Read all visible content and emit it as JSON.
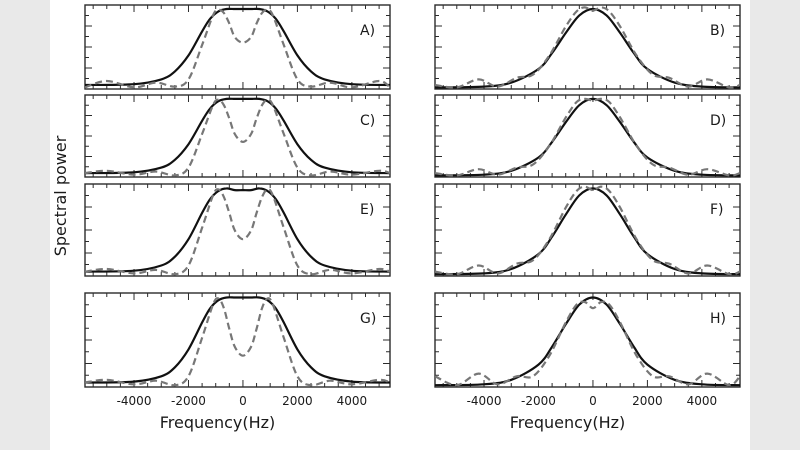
{
  "chart_data": {
    "type": "line",
    "ylabel": "Spectral power",
    "columns": [
      {
        "xlabel": "Frequency(Hz)",
        "tick_labels": [
          "-4000",
          "-2000",
          "0",
          "2000",
          "4000"
        ],
        "tick_values": [
          -4000,
          -2000,
          0,
          2000,
          4000
        ]
      },
      {
        "xlabel": "Frequency(Hz)",
        "tick_labels": [
          "-4000",
          "-2000",
          "0",
          "2000",
          "4000"
        ],
        "tick_values": [
          -4000,
          -2000,
          0,
          2000,
          4000
        ]
      }
    ],
    "xlim": [
      -5800,
      5400
    ],
    "ylim": [
      0,
      1.05
    ],
    "panels": [
      {
        "label": "A)",
        "column": 0,
        "row": 0,
        "series": [
          {
            "style": "solid",
            "x": [
              -5800,
              -4000,
              -3000,
              -2500,
              -2000,
              -1500,
              -1200,
              -900,
              -600,
              -300,
              0,
              300,
              600,
              900,
              1200,
              1500,
              2000,
              2500,
              3000,
              4000,
              5400
            ],
            "y": [
              0.05,
              0.06,
              0.12,
              0.22,
              0.42,
              0.72,
              0.88,
              0.97,
              1.0,
              1.0,
              1.0,
              1.0,
              1.0,
              0.97,
              0.88,
              0.72,
              0.42,
              0.22,
              0.12,
              0.06,
              0.05
            ]
          },
          {
            "style": "dashed",
            "x": [
              -5800,
              -5000,
              -4000,
              -3200,
              -2500,
              -2000,
              -1500,
              -1100,
              -900,
              -700,
              -500,
              -300,
              0,
              300,
              500,
              700,
              900,
              1100,
              1500,
              2000,
              2500,
              3200,
              4000,
              5000,
              5400
            ],
            "y": [
              0.02,
              0.1,
              0.02,
              0.08,
              0.03,
              0.12,
              0.55,
              0.92,
              0.99,
              0.95,
              0.82,
              0.65,
              0.58,
              0.65,
              0.82,
              0.95,
              0.99,
              0.92,
              0.55,
              0.12,
              0.03,
              0.08,
              0.02,
              0.1,
              0.02
            ]
          }
        ]
      },
      {
        "label": "B)",
        "column": 1,
        "row": 0,
        "series": [
          {
            "style": "solid",
            "x": [
              -5800,
              -4000,
              -3000,
              -2000,
              -1500,
              -1000,
              -500,
              0,
              500,
              1000,
              1500,
              2000,
              3000,
              4000,
              5400
            ],
            "y": [
              0.02,
              0.03,
              0.08,
              0.25,
              0.45,
              0.7,
              0.92,
              1.0,
              0.92,
              0.7,
              0.45,
              0.25,
              0.08,
              0.03,
              0.02
            ]
          },
          {
            "style": "dashed",
            "x": [
              -5800,
              -5000,
              -4200,
              -3500,
              -2800,
              -2200,
              -1600,
              -1000,
              -600,
              -300,
              0,
              300,
              600,
              1000,
              1600,
              2200,
              2800,
              3500,
              4200,
              5000,
              5400
            ],
            "y": [
              0.05,
              0.02,
              0.12,
              0.03,
              0.14,
              0.18,
              0.42,
              0.78,
              0.97,
              1.02,
              0.98,
              1.02,
              0.97,
              0.78,
              0.42,
              0.18,
              0.14,
              0.03,
              0.12,
              0.02,
              0.05
            ]
          }
        ]
      },
      {
        "label": "C)",
        "column": 0,
        "row": 1,
        "series": [
          {
            "style": "solid",
            "x": [
              -5800,
              -4000,
              -3000,
              -2500,
              -2000,
              -1500,
              -1200,
              -900,
              -600,
              -300,
              0,
              300,
              600,
              900,
              1200,
              1500,
              2000,
              2500,
              3000,
              4000,
              5400
            ],
            "y": [
              0.05,
              0.06,
              0.12,
              0.22,
              0.42,
              0.72,
              0.88,
              0.97,
              1.0,
              1.0,
              1.0,
              1.0,
              1.0,
              0.97,
              0.88,
              0.72,
              0.42,
              0.22,
              0.12,
              0.06,
              0.05
            ]
          },
          {
            "style": "dashed",
            "x": [
              -5800,
              -5000,
              -4000,
              -3200,
              -2500,
              -2000,
              -1500,
              -1100,
              -900,
              -700,
              -500,
              -300,
              0,
              300,
              500,
              700,
              900,
              1100,
              1500,
              2000,
              2500,
              3200,
              4000,
              5000,
              5400
            ],
            "y": [
              0.05,
              0.08,
              0.03,
              0.07,
              0.02,
              0.12,
              0.55,
              0.92,
              0.99,
              0.92,
              0.75,
              0.55,
              0.45,
              0.55,
              0.75,
              0.92,
              0.99,
              0.92,
              0.55,
              0.12,
              0.02,
              0.07,
              0.03,
              0.08,
              0.05
            ]
          }
        ]
      },
      {
        "label": "D)",
        "column": 1,
        "row": 1,
        "series": [
          {
            "style": "solid",
            "x": [
              -5800,
              -4000,
              -3000,
              -2000,
              -1500,
              -1000,
              -500,
              0,
              500,
              1000,
              1500,
              2000,
              3000,
              4000,
              5400
            ],
            "y": [
              0.02,
              0.03,
              0.08,
              0.25,
              0.45,
              0.7,
              0.92,
              1.0,
              0.92,
              0.7,
              0.45,
              0.25,
              0.08,
              0.03,
              0.02
            ]
          },
          {
            "style": "dashed",
            "x": [
              -5800,
              -5000,
              -4200,
              -3500,
              -2800,
              -2200,
              -1600,
              -1000,
              -600,
              -300,
              0,
              300,
              600,
              1000,
              1600,
              2200,
              2800,
              3500,
              4200,
              5000,
              5400
            ],
            "y": [
              0.05,
              0.02,
              0.1,
              0.03,
              0.12,
              0.16,
              0.4,
              0.76,
              0.96,
              1.0,
              0.98,
              1.0,
              0.96,
              0.76,
              0.4,
              0.16,
              0.12,
              0.03,
              0.1,
              0.02,
              0.05
            ]
          }
        ]
      },
      {
        "label": "E)",
        "column": 0,
        "row": 2,
        "series": [
          {
            "style": "solid",
            "x": [
              -5800,
              -4000,
              -3000,
              -2500,
              -2000,
              -1500,
              -1200,
              -900,
              -600,
              -300,
              0,
              300,
              600,
              900,
              1200,
              1500,
              2000,
              2500,
              3000,
              4000,
              5400
            ],
            "y": [
              0.05,
              0.06,
              0.12,
              0.22,
              0.42,
              0.72,
              0.88,
              0.97,
              1.0,
              0.98,
              0.98,
              0.98,
              1.0,
              0.97,
              0.88,
              0.72,
              0.42,
              0.22,
              0.12,
              0.06,
              0.05
            ]
          },
          {
            "style": "dashed",
            "x": [
              -5800,
              -5000,
              -4000,
              -3200,
              -2500,
              -2000,
              -1500,
              -1100,
              -900,
              -700,
              -500,
              -300,
              0,
              300,
              500,
              700,
              900,
              1100,
              1500,
              2000,
              2500,
              3200,
              4000,
              5000,
              5400
            ],
            "y": [
              0.05,
              0.08,
              0.03,
              0.07,
              0.02,
              0.12,
              0.55,
              0.92,
              0.99,
              0.9,
              0.72,
              0.52,
              0.42,
              0.52,
              0.72,
              0.9,
              0.99,
              0.92,
              0.55,
              0.12,
              0.02,
              0.07,
              0.03,
              0.08,
              0.05
            ]
          }
        ]
      },
      {
        "label": "F)",
        "column": 1,
        "row": 2,
        "series": [
          {
            "style": "solid",
            "x": [
              -5800,
              -4000,
              -3000,
              -2000,
              -1500,
              -1000,
              -500,
              0,
              500,
              1000,
              1500,
              2000,
              3000,
              4000,
              5400
            ],
            "y": [
              0.02,
              0.03,
              0.08,
              0.25,
              0.45,
              0.7,
              0.92,
              1.0,
              0.92,
              0.7,
              0.45,
              0.25,
              0.08,
              0.03,
              0.02
            ]
          },
          {
            "style": "dashed",
            "x": [
              -5800,
              -5000,
              -4200,
              -3500,
              -2800,
              -2200,
              -1600,
              -1000,
              -600,
              -300,
              0,
              300,
              600,
              1000,
              1600,
              2200,
              2800,
              3500,
              4200,
              5000,
              5400
            ],
            "y": [
              0.05,
              0.02,
              0.12,
              0.03,
              0.14,
              0.18,
              0.42,
              0.78,
              0.97,
              1.02,
              0.98,
              1.02,
              0.97,
              0.78,
              0.42,
              0.18,
              0.14,
              0.03,
              0.12,
              0.02,
              0.05
            ]
          }
        ]
      },
      {
        "label": "G)",
        "column": 0,
        "row": 3,
        "series": [
          {
            "style": "solid",
            "x": [
              -5800,
              -4000,
              -3000,
              -2500,
              -2000,
              -1500,
              -1200,
              -900,
              -600,
              -300,
              0,
              300,
              600,
              900,
              1200,
              1500,
              2000,
              2500,
              3000,
              4000,
              5400
            ],
            "y": [
              0.05,
              0.06,
              0.12,
              0.22,
              0.42,
              0.72,
              0.88,
              0.97,
              1.0,
              1.0,
              1.0,
              1.0,
              1.0,
              0.97,
              0.88,
              0.72,
              0.42,
              0.22,
              0.12,
              0.06,
              0.05
            ]
          },
          {
            "style": "dashed",
            "x": [
              -5800,
              -5000,
              -4000,
              -3200,
              -2500,
              -2000,
              -1500,
              -1100,
              -900,
              -700,
              -500,
              -300,
              0,
              300,
              500,
              700,
              900,
              1100,
              1500,
              2000,
              2500,
              3200,
              4000,
              5000,
              5400
            ],
            "y": [
              0.05,
              0.08,
              0.03,
              0.07,
              0.02,
              0.12,
              0.55,
              0.92,
              0.99,
              0.88,
              0.65,
              0.45,
              0.35,
              0.45,
              0.65,
              0.88,
              0.99,
              0.92,
              0.55,
              0.12,
              0.02,
              0.07,
              0.03,
              0.08,
              0.05
            ]
          }
        ]
      },
      {
        "label": "H)",
        "column": 1,
        "row": 3,
        "series": [
          {
            "style": "solid",
            "x": [
              -5800,
              -4000,
              -3000,
              -2000,
              -1500,
              -1000,
              -500,
              0,
              500,
              1000,
              1500,
              2000,
              3000,
              4000,
              5400
            ],
            "y": [
              0.02,
              0.03,
              0.08,
              0.25,
              0.45,
              0.7,
              0.92,
              1.0,
              0.92,
              0.7,
              0.45,
              0.25,
              0.08,
              0.03,
              0.02
            ]
          },
          {
            "style": "dashed",
            "x": [
              -5800,
              -5000,
              -4200,
              -3500,
              -2800,
              -2200,
              -1600,
              -1000,
              -600,
              -300,
              0,
              300,
              600,
              1000,
              1600,
              2200,
              2800,
              3500,
              4200,
              5000,
              5400
            ],
            "y": [
              0.12,
              0.02,
              0.15,
              0.03,
              0.12,
              0.12,
              0.35,
              0.72,
              0.92,
              0.95,
              0.88,
              0.95,
              0.92,
              0.72,
              0.35,
              0.12,
              0.12,
              0.03,
              0.15,
              0.02,
              0.12
            ]
          }
        ]
      }
    ]
  }
}
